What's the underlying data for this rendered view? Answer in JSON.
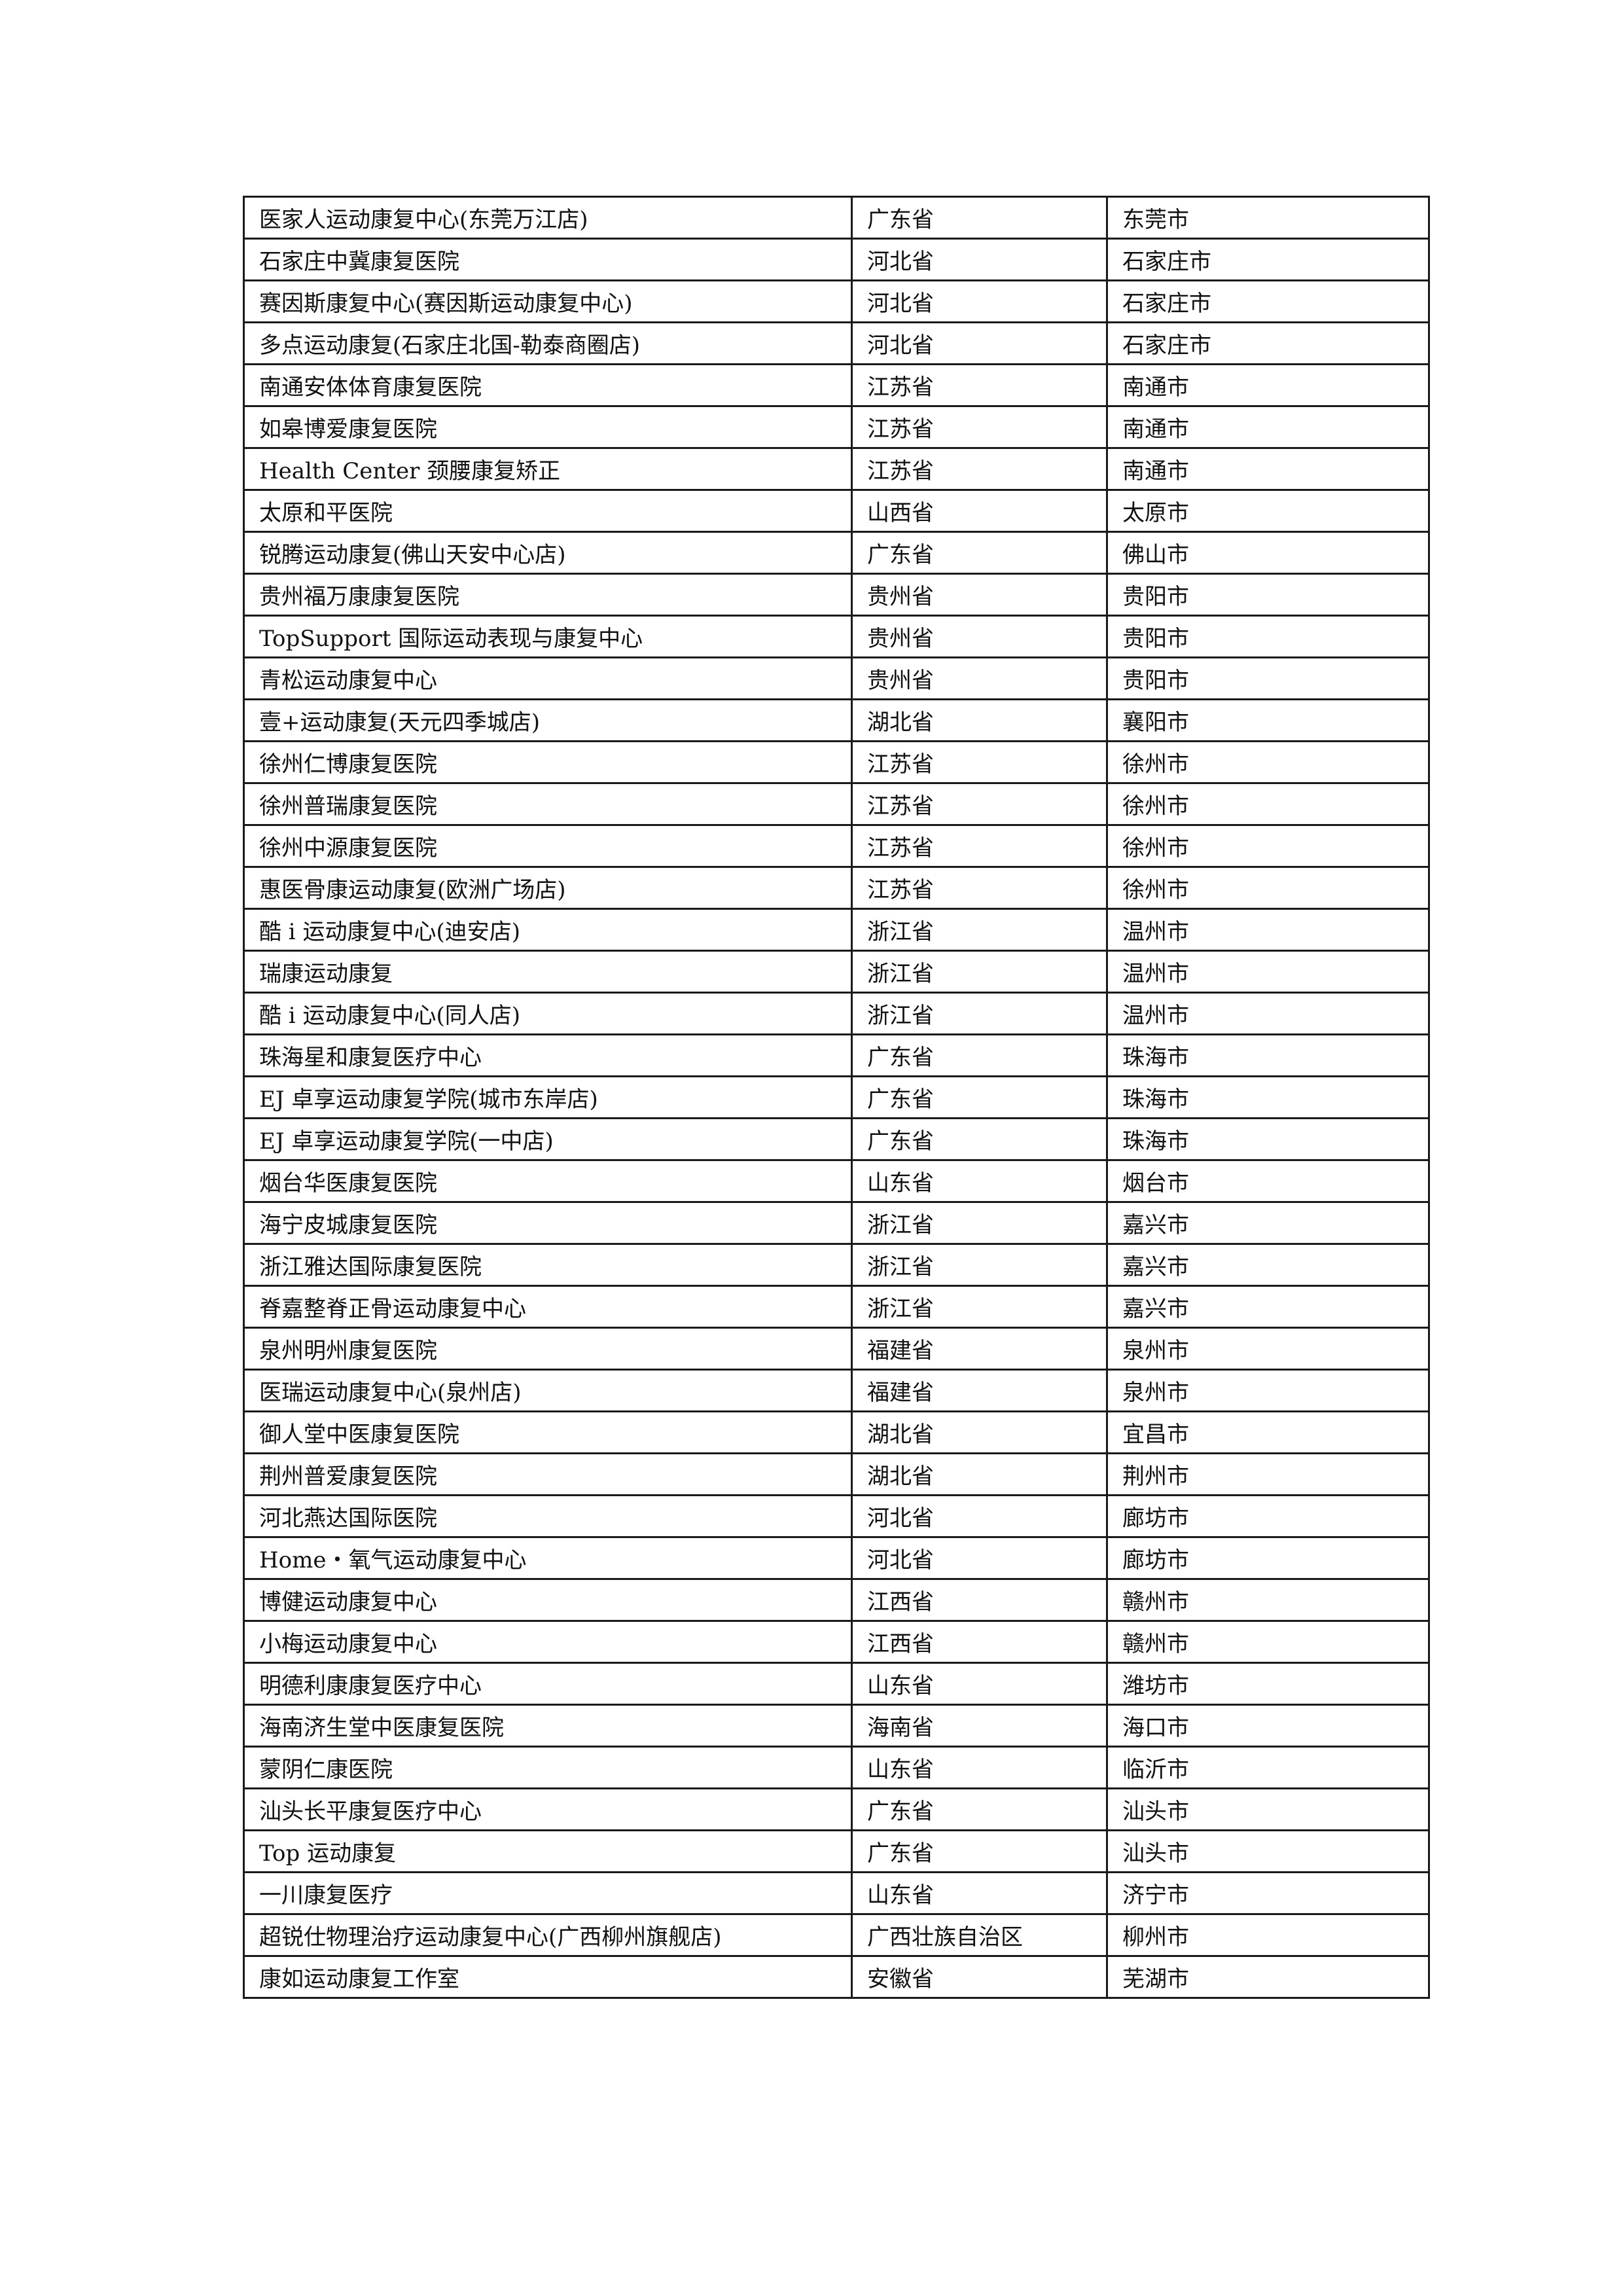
{
  "table": {
    "rows": [
      [
        "医家人运动康复中心(东莞万江店)",
        "广东省",
        "东莞市"
      ],
      [
        "石家庄中冀康复医院",
        "河北省",
        "石家庄市"
      ],
      [
        "赛因斯康复中心(赛因斯运动康复中心)",
        "河北省",
        "石家庄市"
      ],
      [
        "多点运动康复(石家庄北国-勒泰商圈店)",
        "河北省",
        "石家庄市"
      ],
      [
        "南通安体体育康复医院",
        "江苏省",
        "南通市"
      ],
      [
        "如皋博爱康复医院",
        "江苏省",
        "南通市"
      ],
      [
        "Health Center 颈腰康复矫正",
        "江苏省",
        "南通市"
      ],
      [
        "太原和平医院",
        "山西省",
        "太原市"
      ],
      [
        "锐腾运动康复(佛山天安中心店)",
        "广东省",
        "佛山市"
      ],
      [
        "贵州福万康康复医院",
        "贵州省",
        "贵阳市"
      ],
      [
        "TopSupport 国际运动表现与康复中心",
        "贵州省",
        "贵阳市"
      ],
      [
        "青松运动康复中心",
        "贵州省",
        "贵阳市"
      ],
      [
        "壹+运动康复(天元四季城店)",
        "湖北省",
        "襄阳市"
      ],
      [
        "徐州仁博康复医院",
        "江苏省",
        "徐州市"
      ],
      [
        "徐州普瑞康复医院",
        "江苏省",
        "徐州市"
      ],
      [
        "徐州中源康复医院",
        "江苏省",
        "徐州市"
      ],
      [
        "惠医骨康运动康复(欧洲广场店)",
        "江苏省",
        "徐州市"
      ],
      [
        "酷 i 运动康复中心(迪安店)",
        "浙江省",
        "温州市"
      ],
      [
        "瑞康运动康复",
        "浙江省",
        "温州市"
      ],
      [
        "酷 i 运动康复中心(同人店)",
        "浙江省",
        "温州市"
      ],
      [
        "珠海星和康复医疗中心",
        "广东省",
        "珠海市"
      ],
      [
        "EJ 卓享运动康复学院(城市东岸店)",
        "广东省",
        "珠海市"
      ],
      [
        "EJ 卓享运动康复学院(一中店)",
        "广东省",
        "珠海市"
      ],
      [
        "烟台华医康复医院",
        "山东省",
        "烟台市"
      ],
      [
        "海宁皮城康复医院",
        "浙江省",
        "嘉兴市"
      ],
      [
        "浙江雅达国际康复医院",
        "浙江省",
        "嘉兴市"
      ],
      [
        "脊嘉整脊正骨运动康复中心",
        "浙江省",
        "嘉兴市"
      ],
      [
        "泉州明州康复医院",
        "福建省",
        "泉州市"
      ],
      [
        "医瑞运动康复中心(泉州店)",
        "福建省",
        "泉州市"
      ],
      [
        "御人堂中医康复医院",
        "湖北省",
        "宜昌市"
      ],
      [
        "荆州普爱康复医院",
        "湖北省",
        "荆州市"
      ],
      [
        "河北燕达国际医院",
        "河北省",
        "廊坊市"
      ],
      [
        "Home・氧气运动康复中心",
        "河北省",
        "廊坊市"
      ],
      [
        "博健运动康复中心",
        "江西省",
        "赣州市"
      ],
      [
        "小梅运动康复中心",
        "江西省",
        "赣州市"
      ],
      [
        "明德利康康复医疗中心",
        "山东省",
        "潍坊市"
      ],
      [
        "海南济生堂中医康复医院",
        "海南省",
        "海口市"
      ],
      [
        "蒙阴仁康医院",
        "山东省",
        "临沂市"
      ],
      [
        "汕头长平康复医疗中心",
        "广东省",
        "汕头市"
      ],
      [
        "Top 运动康复",
        "广东省",
        "汕头市"
      ],
      [
        "一川康复医疗",
        "山东省",
        "济宁市"
      ],
      [
        "超锐仕物理治疗运动康复中心(广西柳州旗舰店)",
        "广西壮族自治区",
        "柳州市"
      ],
      [
        "康如运动康复工作室",
        "安徽省",
        "芜湖市"
      ]
    ]
  }
}
